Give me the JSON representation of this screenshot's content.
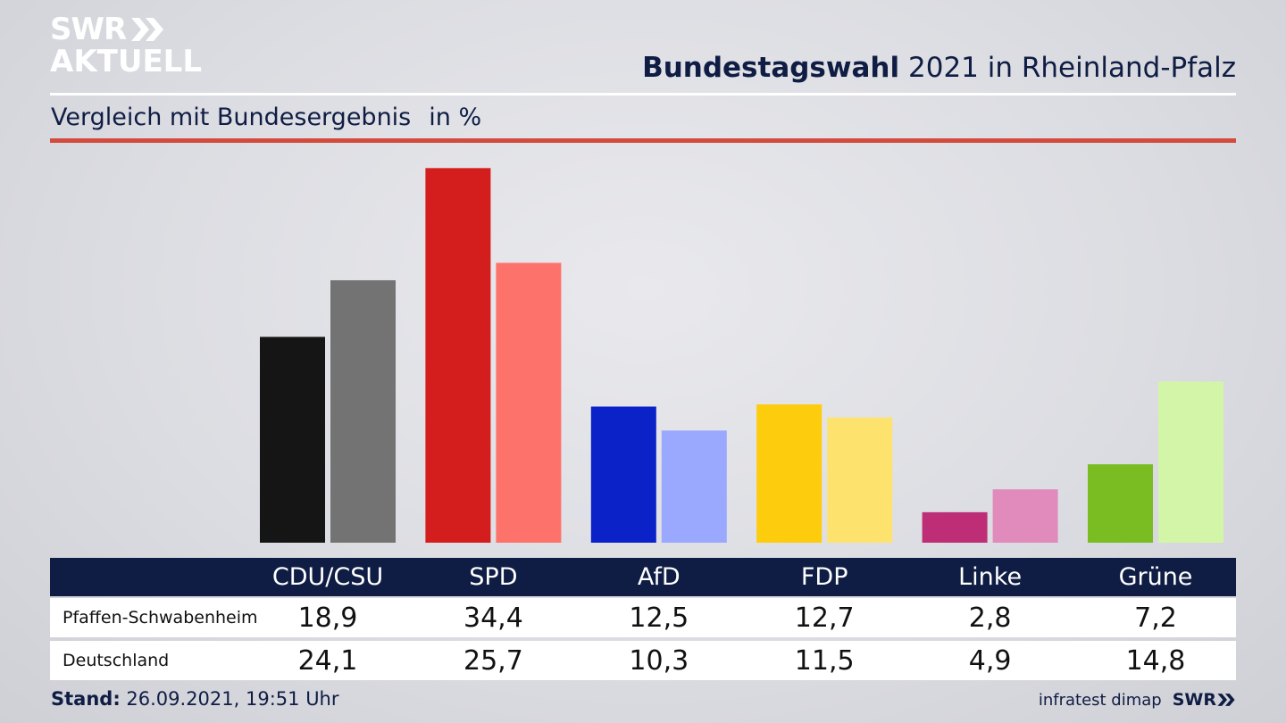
{
  "header": {
    "logo_line1": "SWR",
    "logo_line2": "AKTUELL",
    "title_bold": "Bundestagswahl",
    "title_rest": "2021 in Rheinland-Pfalz",
    "subtitle": "Vergleich mit Bundesergebnis",
    "unit": "in %"
  },
  "colors": {
    "navy": "#0f1d44",
    "accent_red": "#d24b3c"
  },
  "chart_data": {
    "type": "bar",
    "title": "Vergleich mit Bundesergebnis",
    "ylabel": "in %",
    "grid": false,
    "categories": [
      "CDU/CSU",
      "SPD",
      "AfD",
      "FDP",
      "Linke",
      "Grüne"
    ],
    "series": [
      {
        "name": "Pfaffen-Schwabenheim",
        "values": [
          18.9,
          34.4,
          12.5,
          12.7,
          2.8,
          7.2
        ],
        "value_labels": [
          "18,9",
          "34,4",
          "12,5",
          "12,7",
          "2,8",
          "7,2"
        ],
        "colors": [
          "#151515",
          "#d41d1d",
          "#0a22c8",
          "#fdcc0c",
          "#bd2e76",
          "#79bd22"
        ]
      },
      {
        "name": "Deutschland",
        "values": [
          24.1,
          25.7,
          10.3,
          11.5,
          4.9,
          14.8
        ],
        "value_labels": [
          "24,1",
          "25,7",
          "10,3",
          "11,5",
          "4,9",
          "14,8"
        ],
        "colors": [
          "#737373",
          "#fd736c",
          "#9aa9fe",
          "#fde36e",
          "#e08bbb",
          "#d3f5a8"
        ]
      }
    ]
  },
  "footer": {
    "stand_label": "Stand:",
    "stand_value": "26.09.2021, 19:51 Uhr",
    "source": "infratest dimap",
    "brand": "SWR"
  }
}
